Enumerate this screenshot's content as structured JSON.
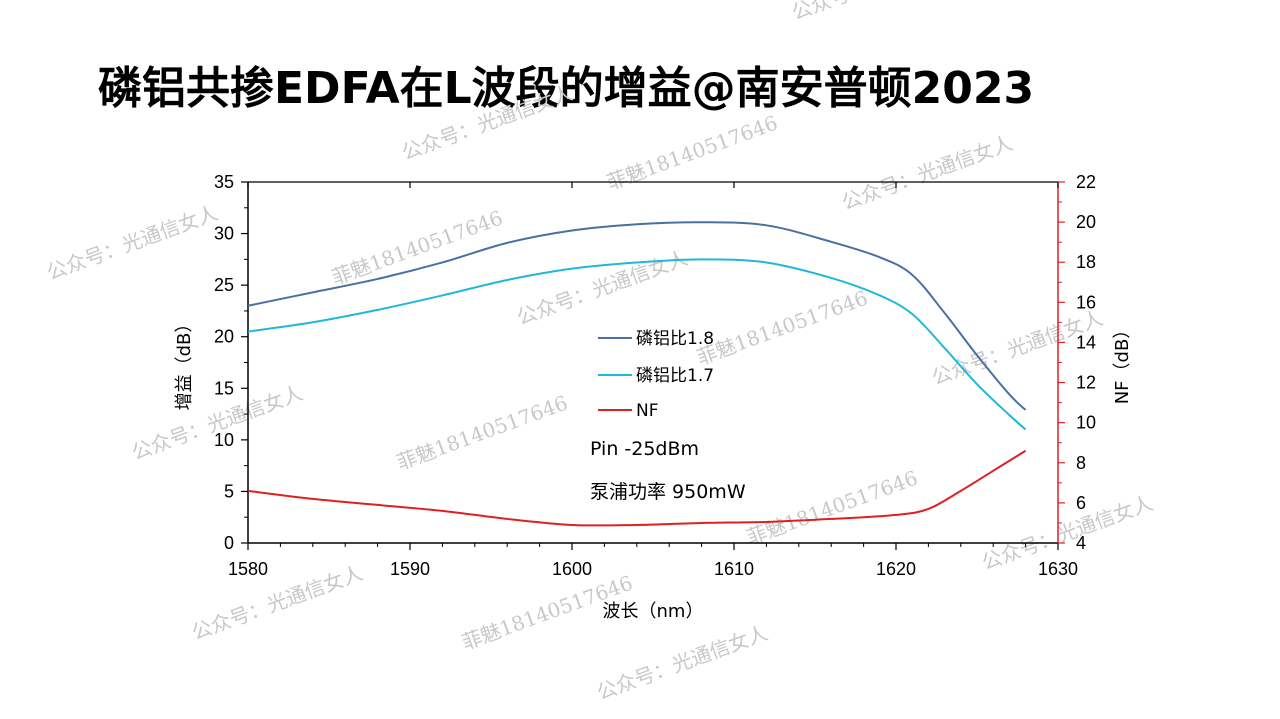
{
  "title": "磷铝共掺EDFA在L波段的增益@南安普顿2023",
  "watermarks": [
    "公众号：光通信女人",
    "菲魅18140517646"
  ],
  "chart_data": {
    "type": "line",
    "xlabel": "波长（nm）",
    "ylabel": "增益（dB）",
    "y2label": "NF（dB）",
    "xlim": [
      1580,
      1630
    ],
    "ylim": [
      0,
      35
    ],
    "y2lim": [
      4,
      22
    ],
    "x_ticks": [
      1580,
      1590,
      1600,
      1610,
      1620,
      1630
    ],
    "y_ticks": [
      0,
      5,
      10,
      15,
      20,
      25,
      30,
      35
    ],
    "y2_ticks": [
      4,
      6,
      8,
      10,
      12,
      14,
      16,
      18,
      20,
      22
    ],
    "grid": false,
    "legend_position": "center",
    "annotations": [
      "Pin -25dBm",
      "泵浦功率 950mW"
    ],
    "series": [
      {
        "name": "磷铝比1.8",
        "axis": "left",
        "color": "#4a6fa5",
        "x": [
          1580,
          1584,
          1588,
          1592,
          1596,
          1600,
          1604,
          1608,
          1612,
          1616,
          1619,
          1621,
          1623,
          1625,
          1627,
          1628
        ],
        "values": [
          23.0,
          24.3,
          25.6,
          27.2,
          29.1,
          30.3,
          30.9,
          31.1,
          30.8,
          29.2,
          27.7,
          26.0,
          22.3,
          18.2,
          14.4,
          12.9
        ]
      },
      {
        "name": "磷铝比1.7",
        "axis": "left",
        "color": "#1fb8da",
        "x": [
          1580,
          1584,
          1588,
          1592,
          1596,
          1600,
          1604,
          1608,
          1612,
          1616,
          1619,
          1621,
          1623,
          1625,
          1627,
          1628
        ],
        "values": [
          20.5,
          21.4,
          22.6,
          24.0,
          25.5,
          26.6,
          27.2,
          27.5,
          27.2,
          25.7,
          24.0,
          22.2,
          18.9,
          15.4,
          12.4,
          11.0
        ]
      },
      {
        "name": "NF",
        "axis": "right",
        "color": "#e02020",
        "x": [
          1580,
          1584,
          1588,
          1592,
          1596,
          1600,
          1604,
          1608,
          1612,
          1616,
          1620,
          1622,
          1624,
          1626,
          1628
        ],
        "values": [
          6.6,
          6.2,
          5.9,
          5.6,
          5.2,
          4.9,
          4.9,
          5.0,
          5.05,
          5.2,
          5.4,
          5.7,
          6.6,
          7.6,
          8.6
        ]
      }
    ]
  }
}
